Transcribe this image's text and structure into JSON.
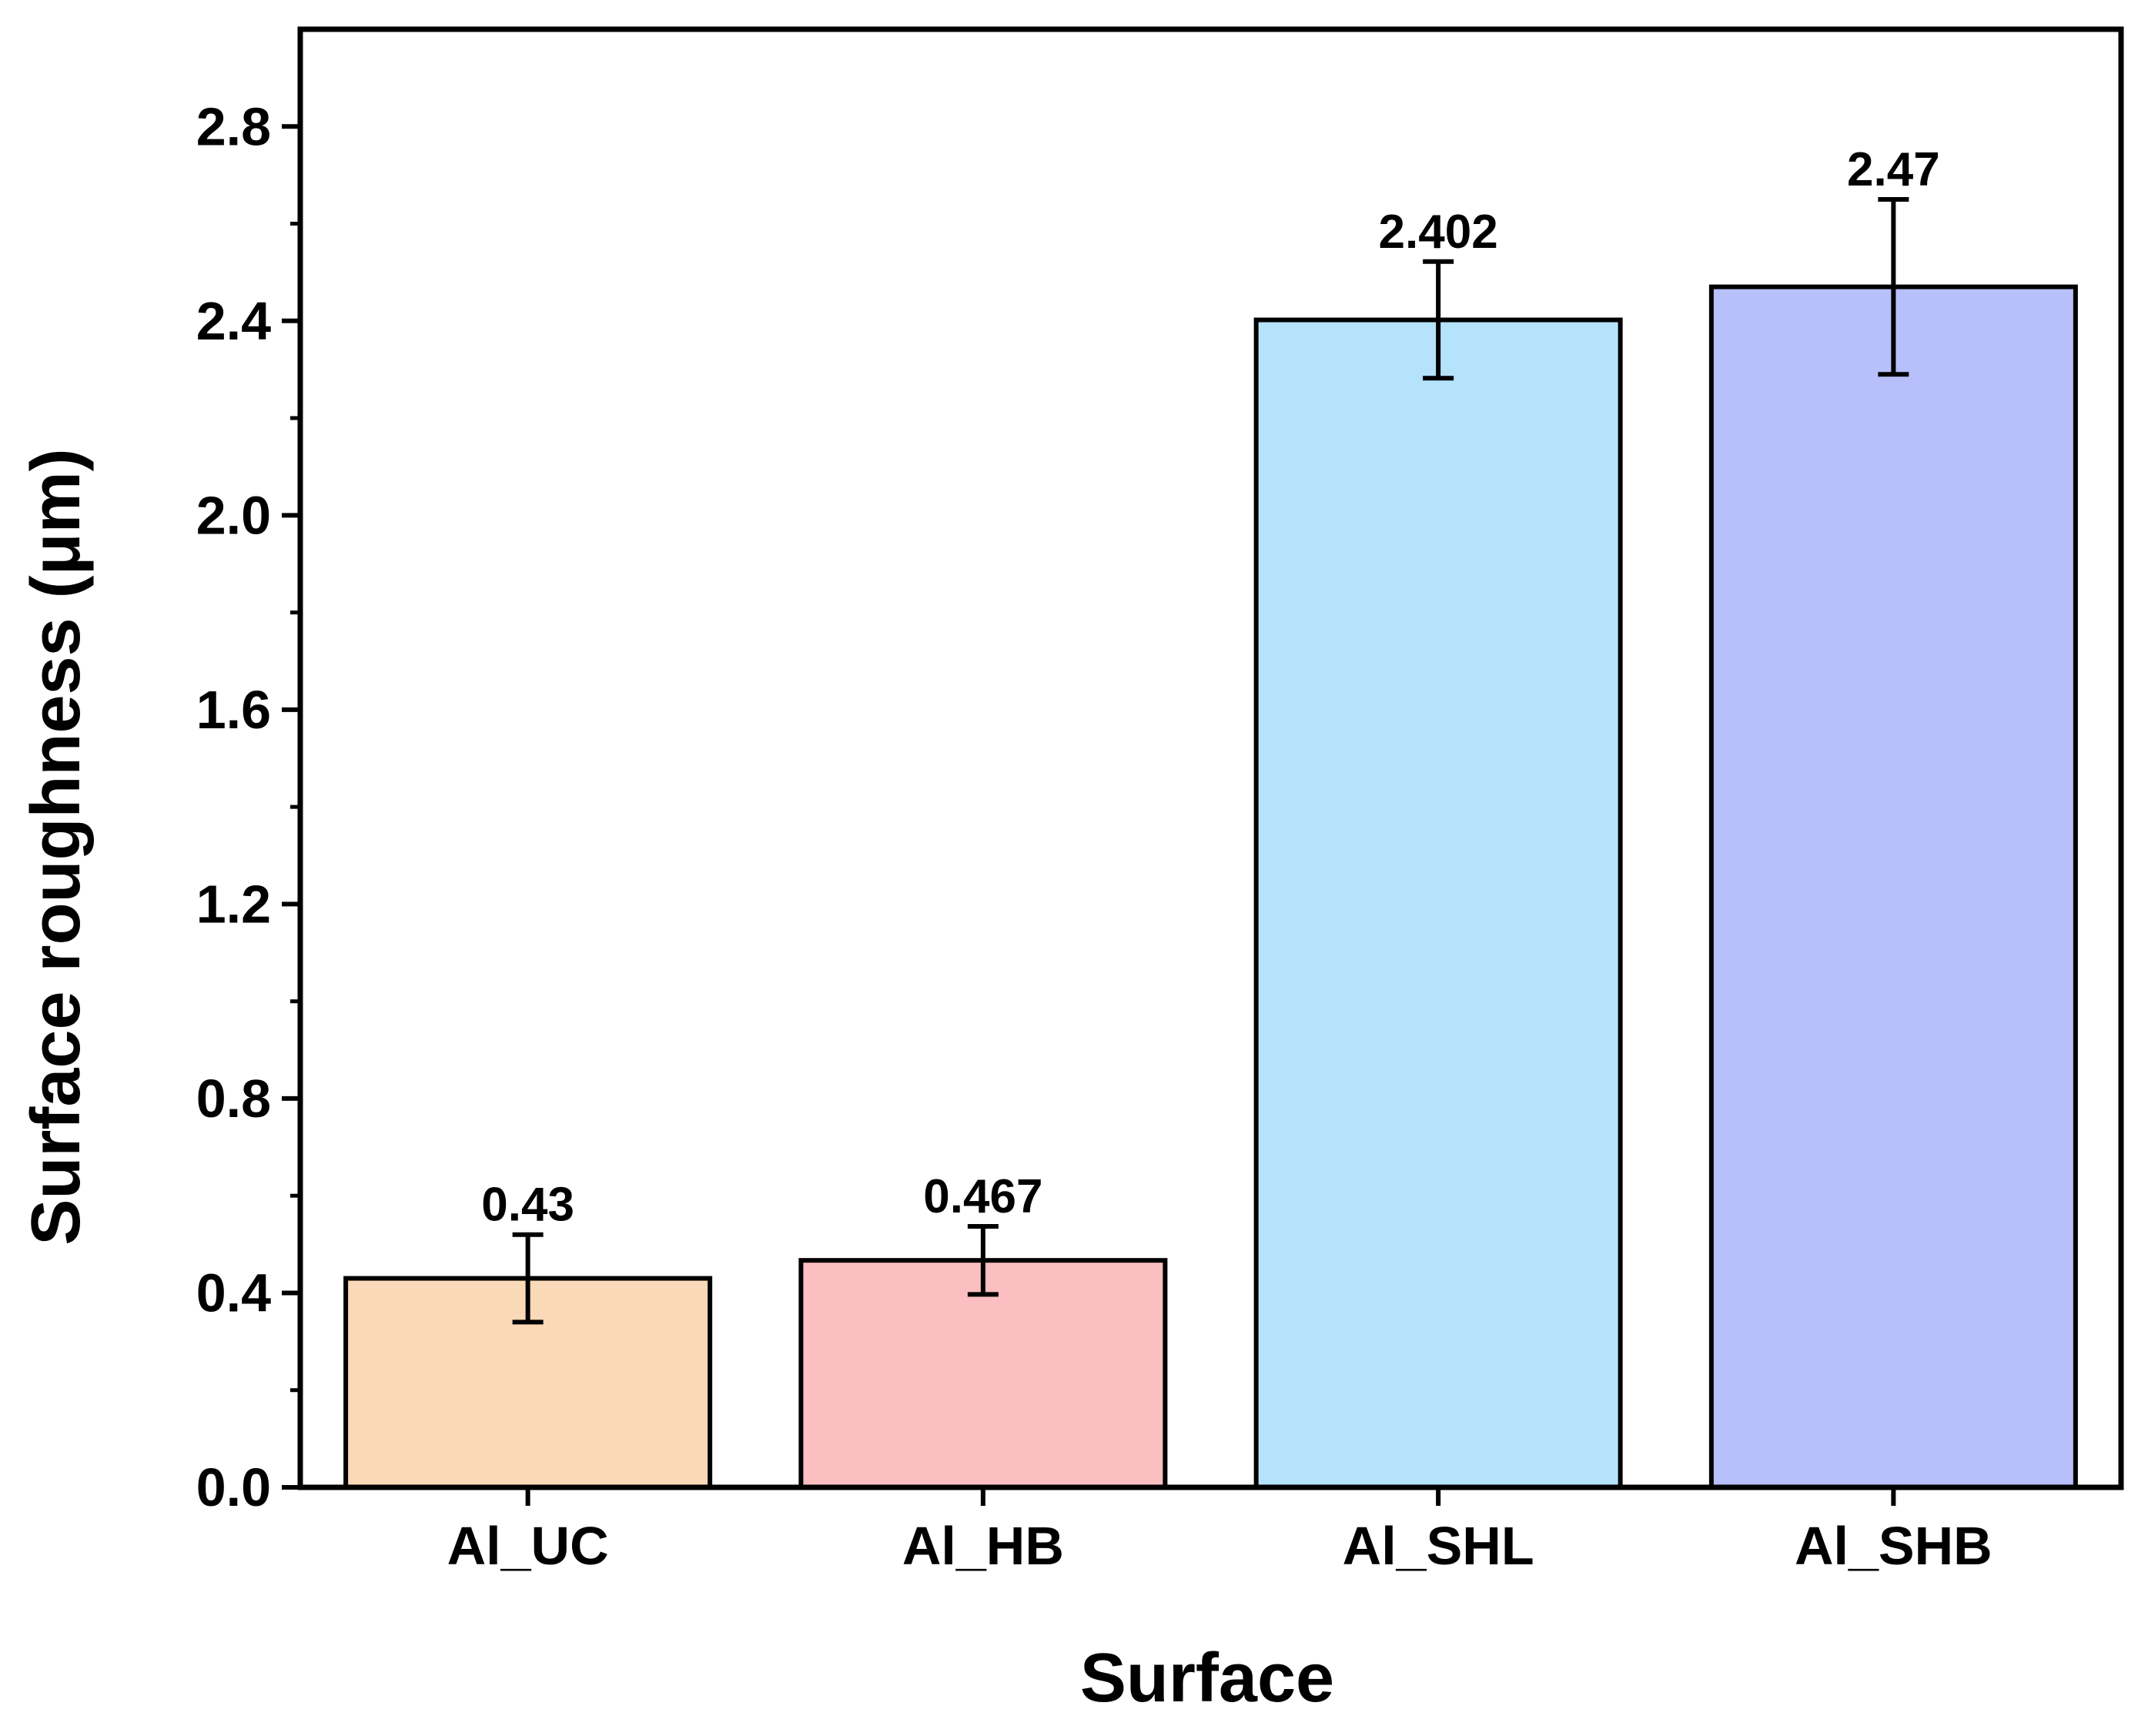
{
  "chart_data": {
    "type": "bar",
    "xlabel": "Surface",
    "ylabel": "Surface roughness (μm)",
    "categories": [
      "Al_UC",
      "Al_HB",
      "Al_SHL",
      "Al_SHB"
    ],
    "values": [
      0.43,
      0.467,
      2.402,
      2.47
    ],
    "value_labels": [
      "0.43",
      "0.467",
      "2.402",
      "2.47"
    ],
    "errors": [
      0.09,
      0.07,
      0.12,
      0.18
    ],
    "colors": [
      "#FAD9B8",
      "#FBBFC1",
      "#B6E3FC",
      "#B8C0FB"
    ],
    "ylim": [
      0,
      3.0
    ],
    "yticks": [
      0.0,
      0.4,
      0.8,
      1.2,
      1.6,
      2.0,
      2.4,
      2.8
    ],
    "ytick_labels": [
      "0.0",
      "0.4",
      "0.8",
      "1.2",
      "1.6",
      "2.0",
      "2.4",
      "2.8"
    ],
    "grid": false,
    "legend": "none"
  }
}
